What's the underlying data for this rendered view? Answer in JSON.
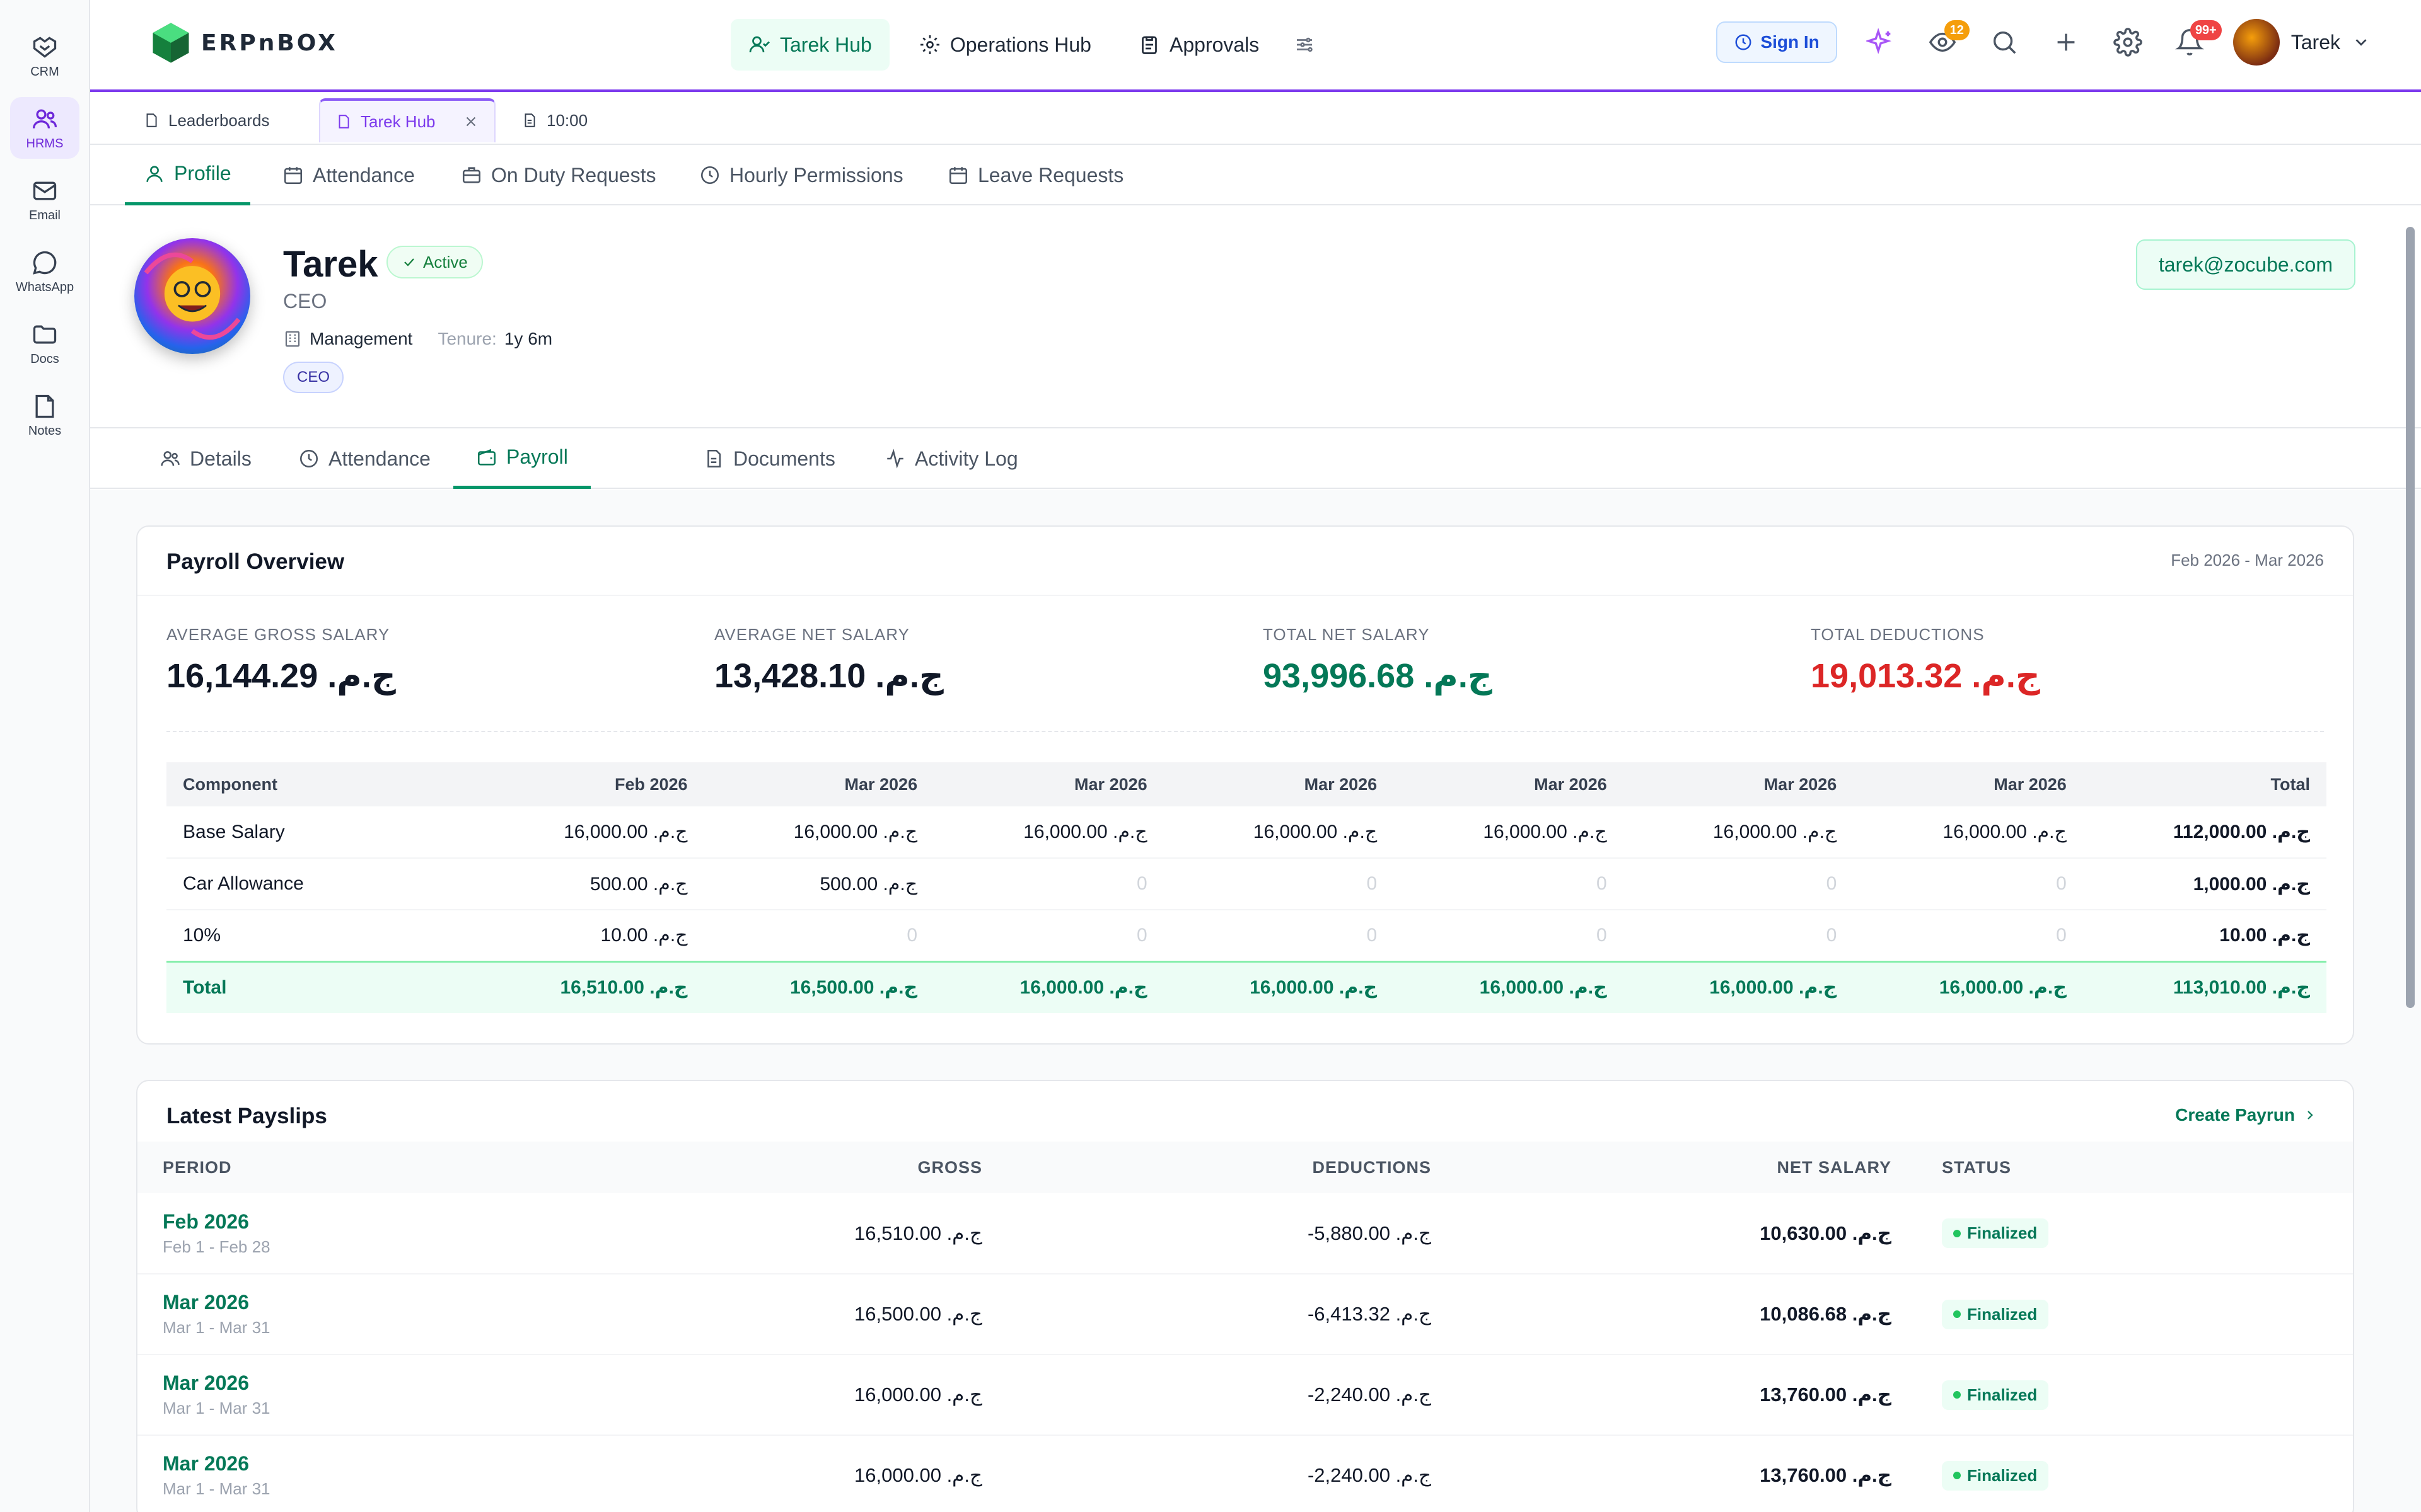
{
  "sidebar": {
    "items": [
      {
        "label": "CRM",
        "icon": "handshake-icon"
      },
      {
        "label": "HRMS",
        "icon": "users-icon"
      },
      {
        "label": "Email",
        "icon": "mail-icon"
      },
      {
        "label": "WhatsApp",
        "icon": "chat-bubble-icon"
      },
      {
        "label": "Docs",
        "icon": "folder-icon"
      },
      {
        "label": "Notes",
        "icon": "note-icon"
      }
    ]
  },
  "topbar": {
    "logo": "ERPnBOX",
    "hubs": [
      {
        "label": "Tarek Hub",
        "icon": "user-check-icon"
      },
      {
        "label": "Operations Hub",
        "icon": "gear-icon"
      },
      {
        "label": "Approvals",
        "icon": "clipboard-icon"
      }
    ],
    "sign_in": "Sign In",
    "eye_badge": "12",
    "bell_badge": "99+",
    "user_name": "Tarek",
    "accent": "#7c3aed"
  },
  "tabs": [
    {
      "label": "Leaderboards"
    },
    {
      "label": "Tarek Hub"
    },
    {
      "label": "10:00"
    }
  ],
  "subnav": [
    {
      "label": "Profile"
    },
    {
      "label": "Attendance"
    },
    {
      "label": "On Duty Requests"
    },
    {
      "label": "Hourly Permissions"
    },
    {
      "label": "Leave Requests"
    }
  ],
  "profile": {
    "name": "Tarek",
    "status": "Active",
    "title": "CEO",
    "department": "Management",
    "tenure_label": "Tenure:",
    "tenure": "1y 6m",
    "tag": "CEO",
    "email": "tarek@zocube.com"
  },
  "profile_tabs": [
    {
      "label": "Details"
    },
    {
      "label": "Attendance"
    },
    {
      "label": "Payroll"
    },
    {
      "label": "Documents"
    },
    {
      "label": "Activity Log"
    }
  ],
  "overview": {
    "title": "Payroll Overview",
    "range": "Feb 2026 - Mar 2026",
    "stats": [
      {
        "label": "Average Gross Salary",
        "value": "ج.م. 16,144.29"
      },
      {
        "label": "Average Net Salary",
        "value": "ج.م. 13,428.10"
      },
      {
        "label": "Total Net Salary",
        "value": "ج.م. 93,996.68"
      },
      {
        "label": "Total Deductions",
        "value": "ج.م. 19,013.32"
      }
    ],
    "table": {
      "headers": [
        "Component",
        "Feb 2026",
        "Mar 2026",
        "Mar 2026",
        "Mar 2026",
        "Mar 2026",
        "Mar 2026",
        "Mar 2026",
        "Total"
      ],
      "rows": [
        [
          "Base Salary",
          "ج.م. 16,000.00",
          "ج.م. 16,000.00",
          "ج.م. 16,000.00",
          "ج.م. 16,000.00",
          "ج.م. 16,000.00",
          "ج.م. 16,000.00",
          "ج.م. 16,000.00",
          "ج.م. 112,000.00"
        ],
        [
          "Car Allowance",
          "ج.م. 500.00",
          "ج.م. 500.00",
          "0",
          "0",
          "0",
          "0",
          "0",
          "ج.م. 1,000.00"
        ],
        [
          "10%",
          "ج.م. 10.00",
          "0",
          "0",
          "0",
          "0",
          "0",
          "0",
          "ج.م. 10.00"
        ]
      ],
      "total": [
        "Total",
        "ج.م. 16,510.00",
        "ج.م. 16,500.00",
        "ج.م. 16,000.00",
        "ج.م. 16,000.00",
        "ج.م. 16,000.00",
        "ج.م. 16,000.00",
        "ج.م. 16,000.00",
        "ج.م. 113,010.00"
      ]
    }
  },
  "payslips": {
    "title": "Latest Payslips",
    "create": "Create Payrun",
    "headers": {
      "period": "PERIOD",
      "gross": "GROSS",
      "deductions": "DEDUCTIONS",
      "net": "NET SALARY",
      "status": "STATUS"
    },
    "rows": [
      {
        "period": "Feb 2026",
        "range": "Feb 1 - Feb 28",
        "gross": "ج.م. 16,510.00",
        "deductions": "-ج.م. 5,880.00",
        "net": "ج.م. 10,630.00",
        "status": "Finalized"
      },
      {
        "period": "Mar 2026",
        "range": "Mar 1 - Mar 31",
        "gross": "ج.م. 16,500.00",
        "deductions": "-ج.م. 6,413.32",
        "net": "ج.م. 10,086.68",
        "status": "Finalized"
      },
      {
        "period": "Mar 2026",
        "range": "Mar 1 - Mar 31",
        "gross": "ج.م. 16,000.00",
        "deductions": "-ج.م. 2,240.00",
        "net": "ج.م. 13,760.00",
        "status": "Finalized"
      },
      {
        "period": "Mar 2026",
        "range": "Mar 1 - Mar 31",
        "gross": "ج.م. 16,000.00",
        "deductions": "-ج.م. 2,240.00",
        "net": "ج.م. 13,760.00",
        "status": "Finalized"
      }
    ]
  }
}
